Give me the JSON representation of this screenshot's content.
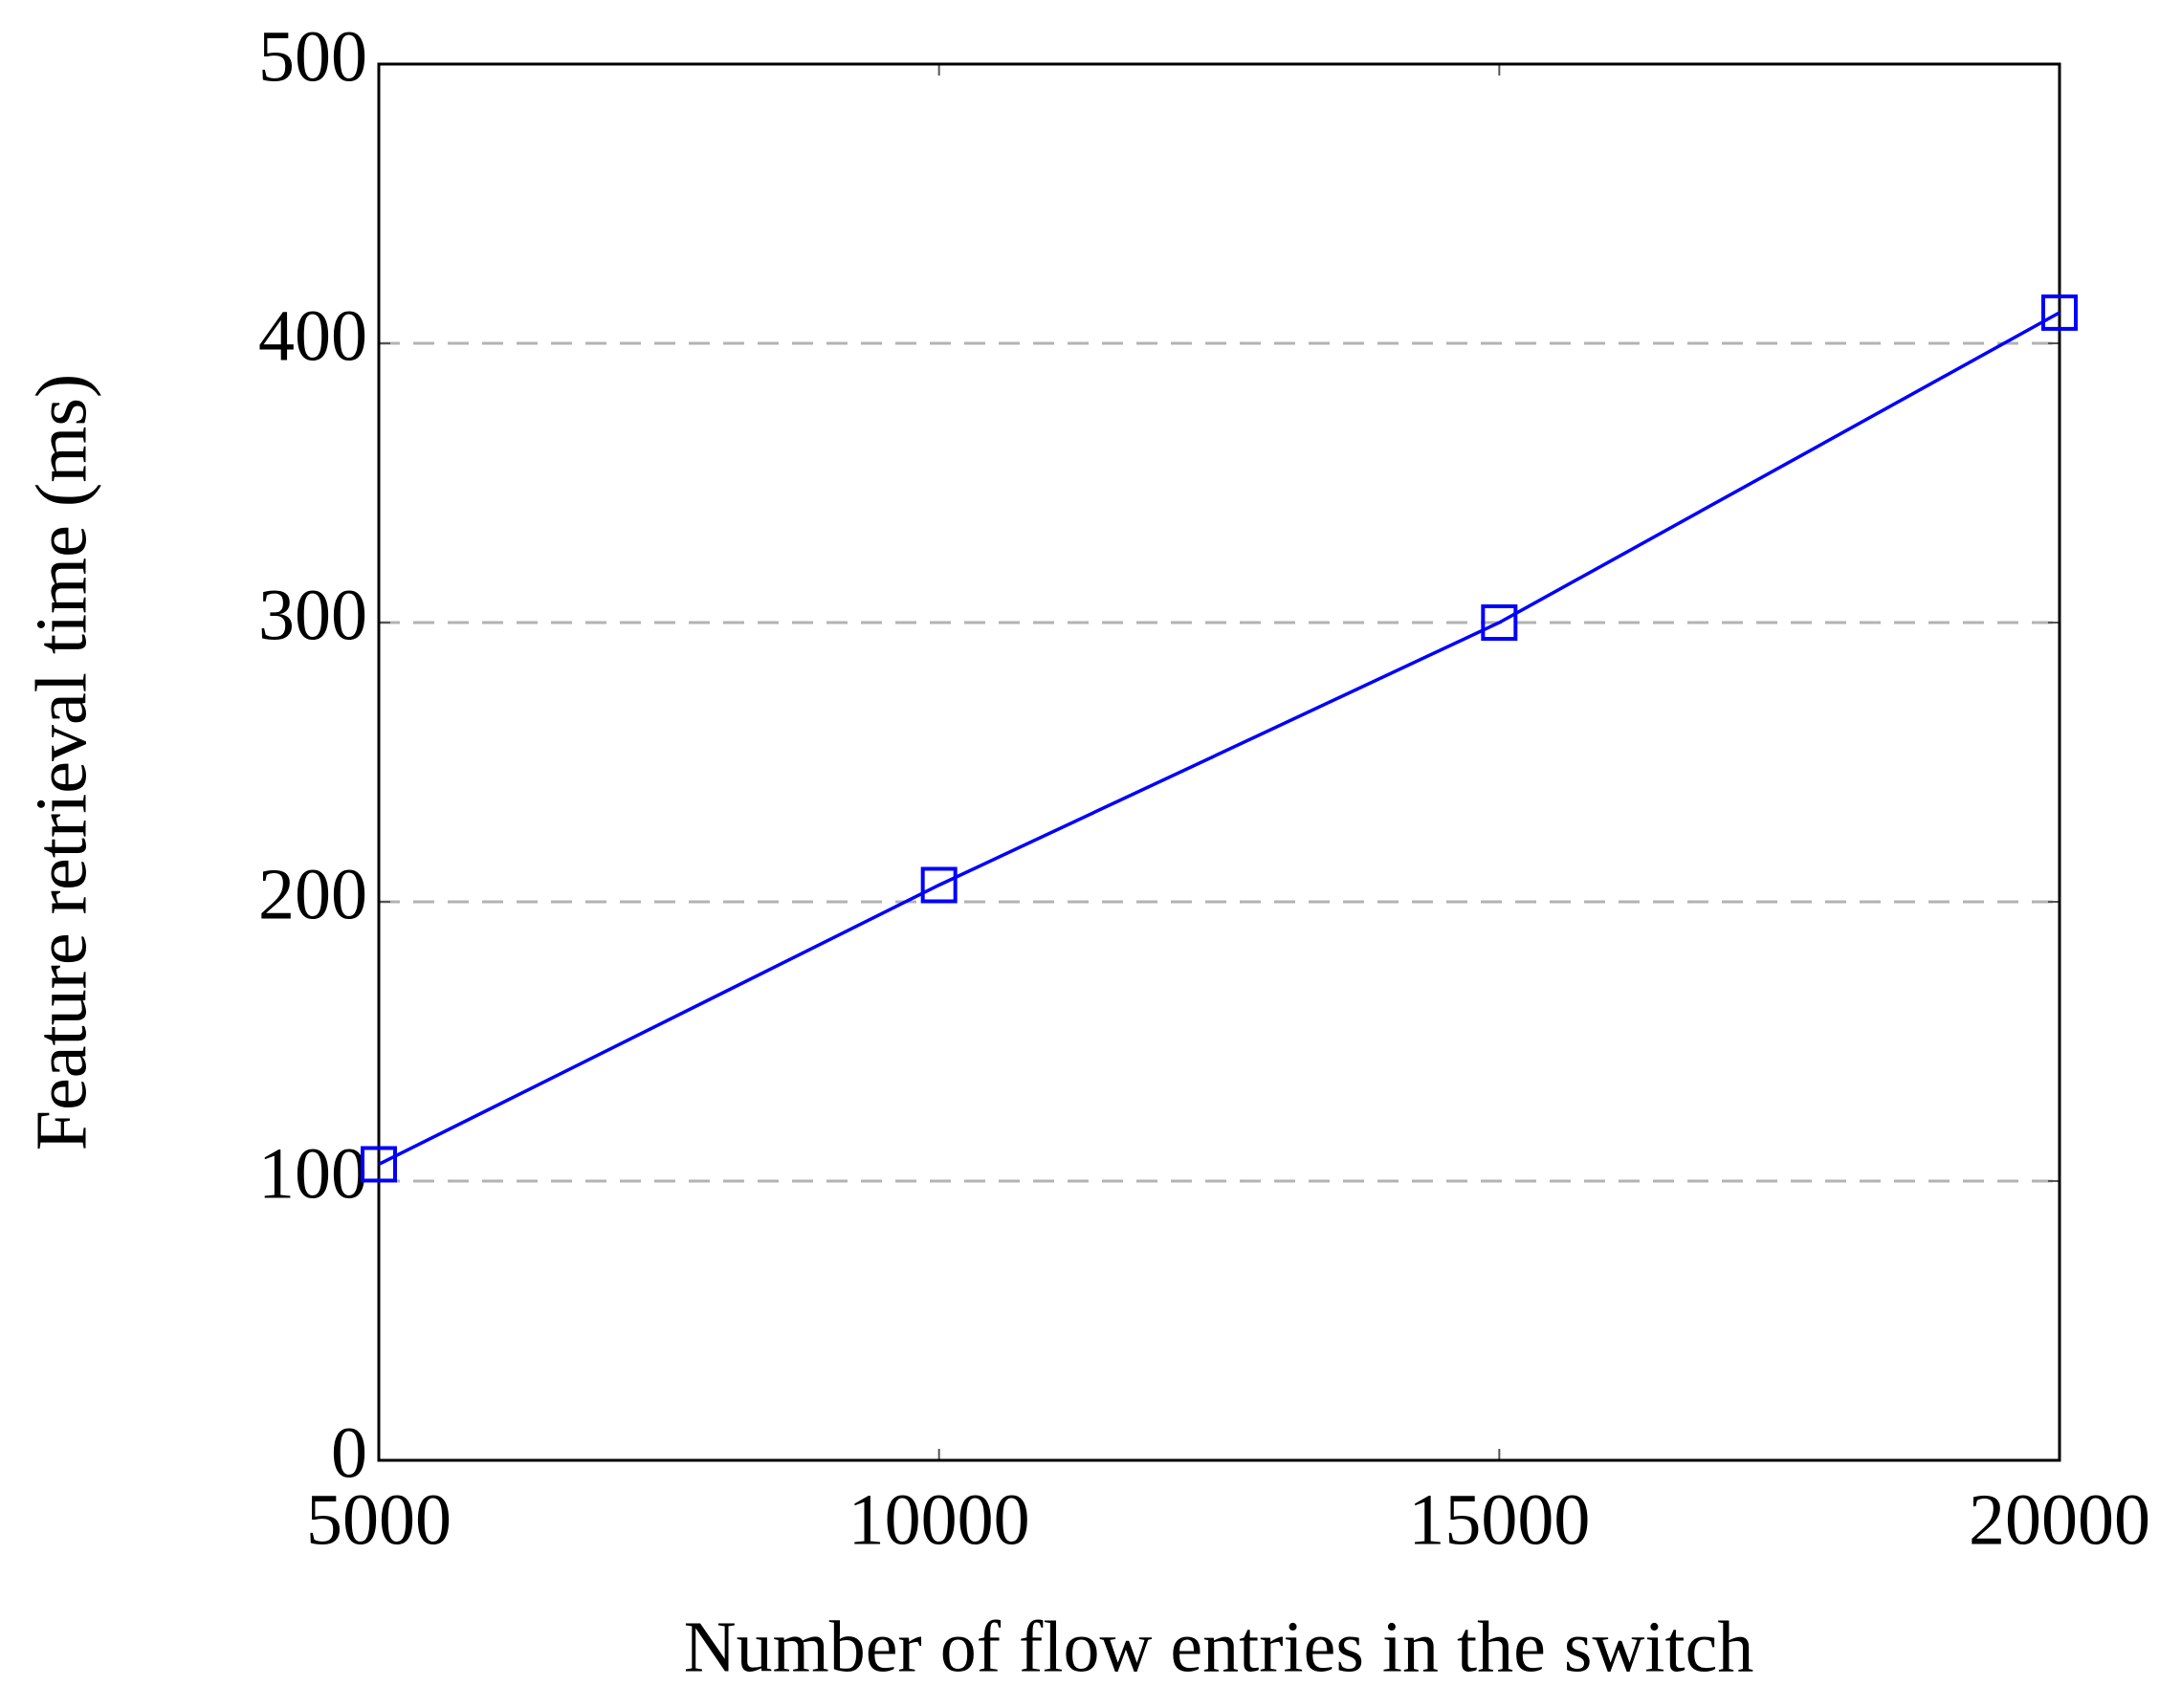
{
  "chart_data": {
    "type": "line",
    "xlabel": "Number of flow entries in the switch",
    "ylabel": "Feature retrieval time (ms)",
    "x": [
      5000,
      10000,
      15000,
      20000
    ],
    "series": [
      {
        "color": "#0000ff",
        "marker": "square",
        "values": [
          106,
          206,
          300,
          411
        ]
      }
    ],
    "xlim": [
      5000,
      20000
    ],
    "xticks": [
      5000,
      10000,
      15000,
      20000
    ],
    "ylim": [
      0,
      500
    ],
    "yticks": [
      0,
      100,
      200,
      300,
      400,
      500
    ],
    "grid": true,
    "grid_color": "#b3b3b3"
  }
}
